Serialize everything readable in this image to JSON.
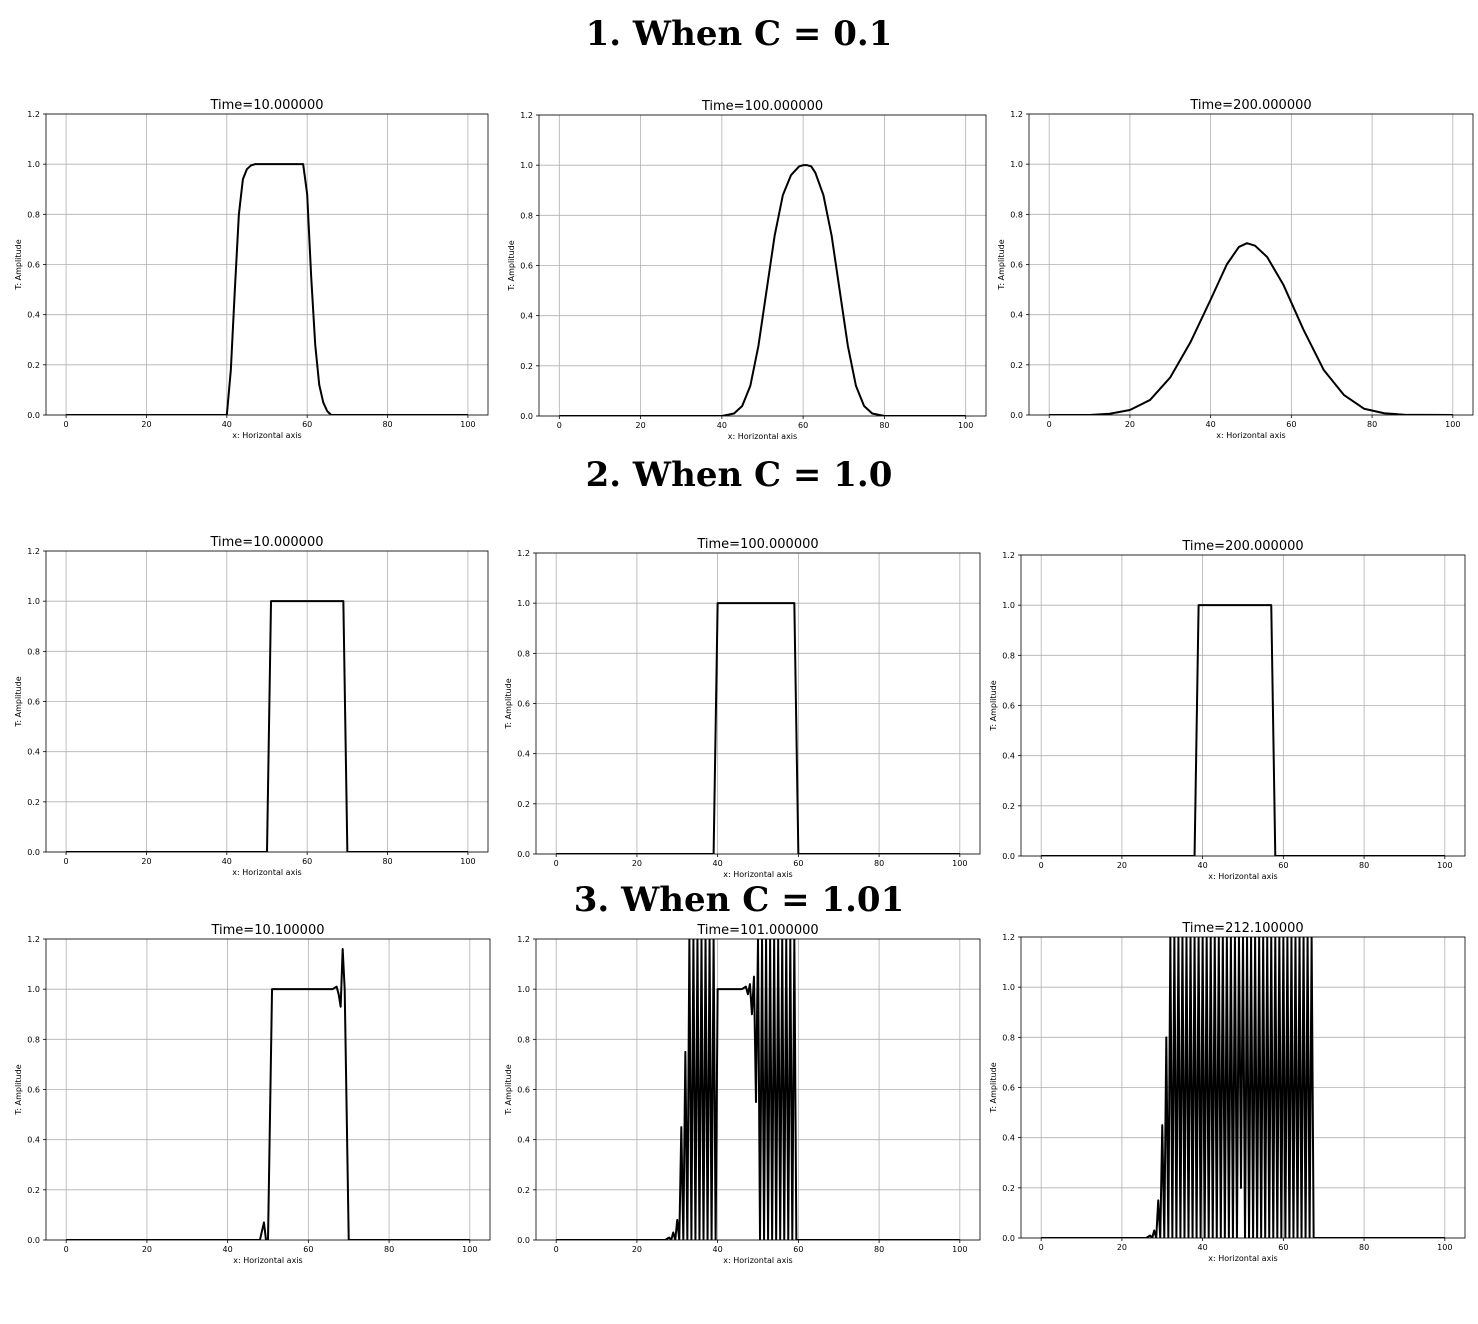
{
  "sections": [
    {
      "title": "1. When C = 0.1"
    },
    {
      "title": "2. When C = 1.0"
    },
    {
      "title": "3. When C = 1.01"
    }
  ],
  "chart_data": [
    {
      "type": "line",
      "title": "Time=10.000000",
      "xlabel": "x: Horizontal axis",
      "ylabel": "T: Amplitude",
      "xlim": [
        -5,
        105
      ],
      "ylim": [
        0,
        1.2
      ],
      "grid": true,
      "xticks": [
        "0",
        "20",
        "40",
        "60",
        "80",
        "100"
      ],
      "yticks": [
        "0.0",
        "0.2",
        "0.4",
        "0.6",
        "0.8",
        "1.0",
        "1.2"
      ],
      "x": [
        0,
        40,
        41,
        42,
        43,
        44,
        45,
        46,
        47,
        48,
        59,
        60,
        61,
        62,
        63,
        64,
        65,
        66,
        100
      ],
      "y": [
        0,
        0,
        0.18,
        0.5,
        0.8,
        0.94,
        0.98,
        0.995,
        1.0,
        1.0,
        1.0,
        0.88,
        0.55,
        0.28,
        0.12,
        0.05,
        0.015,
        0,
        0
      ]
    },
    {
      "type": "line",
      "title": "Time=100.000000",
      "xlabel": "x: Horizontal axis",
      "ylabel": "T: Amplitude",
      "xlim": [
        -5,
        105
      ],
      "ylim": [
        0,
        1.2
      ],
      "grid": true,
      "xticks": [
        "0",
        "20",
        "40",
        "60",
        "80",
        "100"
      ],
      "yticks": [
        "0.0",
        "0.2",
        "0.4",
        "0.6",
        "0.8",
        "1.0",
        "1.2"
      ],
      "x": [
        0,
        40,
        43,
        45,
        47,
        49,
        51,
        53,
        55,
        57,
        59,
        60,
        61,
        62,
        63,
        65,
        67,
        69,
        71,
        73,
        75,
        77,
        80,
        100
      ],
      "y": [
        0,
        0,
        0.01,
        0.04,
        0.12,
        0.28,
        0.5,
        0.72,
        0.88,
        0.96,
        0.995,
        1.0,
        1.0,
        0.995,
        0.97,
        0.88,
        0.72,
        0.5,
        0.28,
        0.12,
        0.04,
        0.01,
        0,
        0
      ]
    },
    {
      "type": "line",
      "title": "Time=200.000000",
      "xlabel": "x: Horizontal axis",
      "ylabel": "T: Amplitude",
      "xlim": [
        -5,
        105
      ],
      "ylim": [
        0,
        1.2
      ],
      "grid": true,
      "xticks": [
        "0",
        "20",
        "40",
        "60",
        "80",
        "100"
      ],
      "yticks": [
        "0.0",
        "0.2",
        "0.4",
        "0.6",
        "0.8",
        "1.0",
        "1.2"
      ],
      "x": [
        0,
        10,
        15,
        20,
        25,
        30,
        35,
        40,
        44,
        47,
        49,
        51,
        54,
        58,
        63,
        68,
        73,
        78,
        83,
        88,
        100
      ],
      "y": [
        0,
        0,
        0.005,
        0.02,
        0.06,
        0.15,
        0.29,
        0.46,
        0.6,
        0.67,
        0.685,
        0.675,
        0.63,
        0.52,
        0.34,
        0.18,
        0.08,
        0.025,
        0.007,
        0.001,
        0
      ]
    },
    {
      "type": "line",
      "title": "Time=10.000000",
      "xlabel": "x: Horizontal axis",
      "ylabel": "T: Amplitude",
      "xlim": [
        -5,
        105
      ],
      "ylim": [
        0,
        1.2
      ],
      "grid": true,
      "xticks": [
        "0",
        "20",
        "40",
        "60",
        "80",
        "100"
      ],
      "yticks": [
        "0.0",
        "0.2",
        "0.4",
        "0.6",
        "0.8",
        "1.0",
        "1.2"
      ],
      "x": [
        0,
        50,
        51,
        69,
        70,
        100
      ],
      "y": [
        0,
        0,
        1.0,
        1.0,
        0,
        0
      ]
    },
    {
      "type": "line",
      "title": "Time=100.000000",
      "xlabel": "x: Horizontal axis",
      "ylabel": "T: Amplitude",
      "xlim": [
        -5,
        105
      ],
      "ylim": [
        0,
        1.2
      ],
      "grid": true,
      "xticks": [
        "0",
        "20",
        "40",
        "60",
        "80",
        "100"
      ],
      "yticks": [
        "0.0",
        "0.2",
        "0.4",
        "0.6",
        "0.8",
        "1.0",
        "1.2"
      ],
      "x": [
        0,
        39,
        40,
        59,
        60,
        100
      ],
      "y": [
        0,
        0,
        1.0,
        1.0,
        0,
        0
      ]
    },
    {
      "type": "line",
      "title": "Time=200.000000",
      "xlabel": "x: Horizontal axis",
      "ylabel": "T: Amplitude",
      "xlim": [
        -5,
        105
      ],
      "ylim": [
        0,
        1.2
      ],
      "grid": true,
      "xticks": [
        "0",
        "20",
        "40",
        "60",
        "80",
        "100"
      ],
      "yticks": [
        "0.0",
        "0.2",
        "0.4",
        "0.6",
        "0.8",
        "1.0",
        "1.2"
      ],
      "x": [
        0,
        38,
        39,
        57,
        58,
        100
      ],
      "y": [
        0,
        0,
        1.0,
        1.0,
        0,
        0
      ]
    },
    {
      "type": "line",
      "title": "Time=10.100000",
      "xlabel": "x: Horizontal axis",
      "ylabel": "T: Amplitude",
      "xlim": [
        -5,
        105
      ],
      "ylim": [
        0,
        1.2
      ],
      "grid": true,
      "xticks": [
        "0",
        "20",
        "40",
        "60",
        "80",
        "100"
      ],
      "yticks": [
        "0.0",
        "0.2",
        "0.4",
        "0.6",
        "0.8",
        "1.0",
        "1.2"
      ],
      "x": [
        0,
        48,
        49,
        49.5,
        50,
        51,
        66,
        67,
        67.5,
        68,
        68.5,
        69,
        70,
        100
      ],
      "y": [
        0,
        0,
        0.07,
        0,
        0,
        1.0,
        1.0,
        1.01,
        0.98,
        0.93,
        1.16,
        1.0,
        0,
        0
      ]
    },
    {
      "type": "line",
      "title": "Time=101.000000",
      "xlabel": "x: Horizontal axis",
      "ylabel": "T: Amplitude",
      "xlim": [
        -5,
        105
      ],
      "ylim": [
        0,
        1.2
      ],
      "grid": true,
      "xticks": [
        "0",
        "20",
        "40",
        "60",
        "80",
        "100"
      ],
      "yticks": [
        "0.0",
        "0.2",
        "0.4",
        "0.6",
        "0.8",
        "1.0",
        "1.2"
      ],
      "x": [
        0,
        27,
        28,
        28.5,
        29,
        29.5,
        30,
        30.5,
        31,
        31.5,
        32,
        32.5,
        33,
        33.5,
        34,
        34.5,
        35,
        35.5,
        36,
        36.5,
        37,
        37.5,
        38,
        38.5,
        39,
        39.5,
        40,
        46,
        47,
        47.5,
        48,
        48.5,
        49,
        49.5,
        50,
        50.5,
        51,
        51.5,
        52,
        52.5,
        53,
        53.5,
        54,
        54.5,
        55,
        55.5,
        56,
        56.5,
        57,
        57.5,
        58,
        58.5,
        59,
        59.5,
        60,
        100
      ],
      "y": [
        0,
        0,
        0.01,
        0,
        0.03,
        0,
        0.08,
        0,
        0.45,
        0,
        0.75,
        0,
        1.2,
        0,
        1.2,
        0,
        1.2,
        0,
        1.2,
        0,
        1.2,
        0,
        1.2,
        0,
        1.2,
        0,
        1.0,
        1.0,
        1.01,
        0.98,
        1.02,
        0.9,
        1.05,
        0.55,
        1.2,
        0,
        1.2,
        0,
        1.2,
        0,
        1.2,
        0,
        1.2,
        0,
        1.2,
        0,
        1.2,
        0,
        1.2,
        0,
        1.2,
        0,
        1.2,
        0,
        0,
        0
      ]
    },
    {
      "type": "line",
      "title": "Time=212.100000",
      "xlabel": "x: Horizontal axis",
      "ylabel": "T: Amplitude",
      "xlim": [
        -5,
        105
      ],
      "ylim": [
        0,
        1.2
      ],
      "grid": true,
      "xticks": [
        "0",
        "20",
        "40",
        "60",
        "80",
        "100"
      ],
      "yticks": [
        "0.0",
        "0.2",
        "0.4",
        "0.6",
        "0.8",
        "1.0",
        "1.2"
      ],
      "x": [
        0,
        26,
        27,
        27.5,
        28,
        28.5,
        29,
        29.5,
        30,
        30.5,
        31,
        31.5,
        32,
        32.5,
        33,
        33.5,
        34,
        34.5,
        35,
        35.5,
        36,
        36.5,
        37,
        37.5,
        38,
        38.5,
        39,
        39.5,
        40,
        40.5,
        41,
        41.5,
        42,
        42.5,
        43,
        43.5,
        44,
        44.5,
        45,
        45.5,
        46,
        46.5,
        47,
        47.5,
        48,
        48.5,
        49,
        49.5,
        50,
        50.5,
        51,
        51.5,
        52,
        52.5,
        53,
        53.5,
        54,
        54.5,
        55,
        55.5,
        56,
        56.5,
        57,
        57.5,
        58,
        58.5,
        59,
        59.5,
        60,
        60.5,
        61,
        61.5,
        62,
        62.5,
        63,
        63.5,
        64,
        64.5,
        65,
        65.5,
        66,
        66.5,
        67,
        67.5,
        68,
        100
      ],
      "y": [
        0,
        0,
        0.01,
        0,
        0.03,
        0,
        0.15,
        0,
        0.45,
        0,
        0.8,
        0,
        1.2,
        0,
        1.2,
        0,
        1.2,
        0,
        1.2,
        0,
        1.2,
        0,
        1.2,
        0,
        1.2,
        0,
        1.2,
        0,
        1.2,
        0,
        1.2,
        0,
        1.2,
        0,
        1.2,
        0,
        1.2,
        0,
        1.2,
        0,
        1.2,
        0,
        1.2,
        0,
        1.2,
        0,
        1.2,
        0.2,
        1.2,
        0,
        1.2,
        0,
        1.2,
        0,
        1.2,
        0,
        1.2,
        0,
        1.2,
        0,
        1.2,
        0,
        1.2,
        0,
        1.2,
        0,
        1.2,
        0,
        1.2,
        0,
        1.2,
        0,
        1.2,
        0,
        1.2,
        0,
        1.2,
        0,
        1.2,
        0,
        1.2,
        0,
        1.2,
        0,
        0,
        0
      ]
    }
  ]
}
